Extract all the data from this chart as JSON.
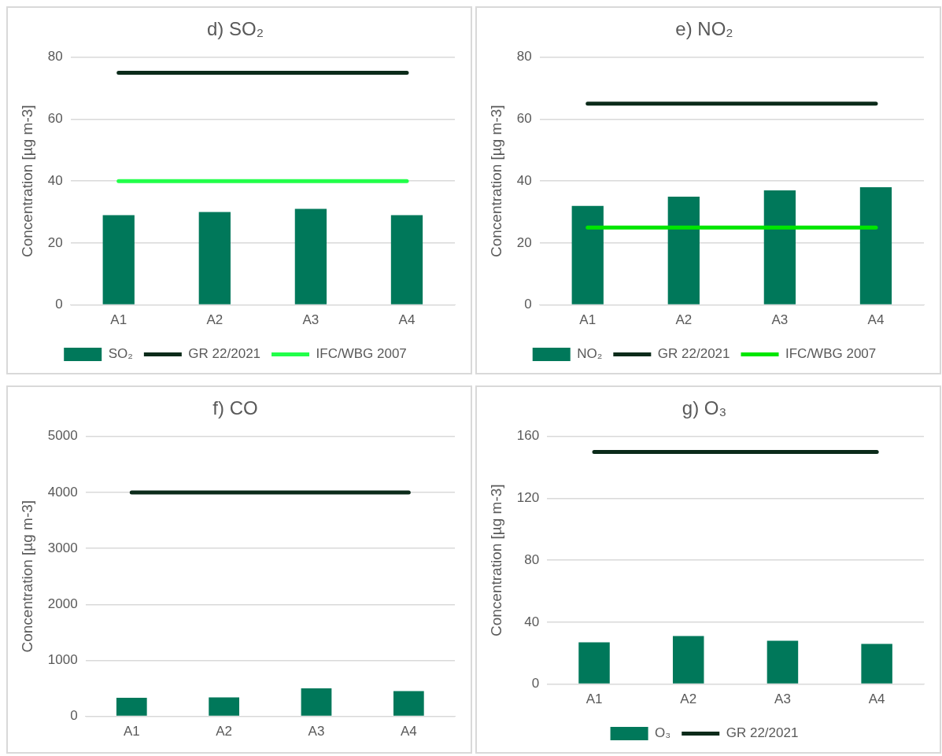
{
  "chart_data": [
    {
      "type": "bar",
      "title": "d) SO₂",
      "ylabel": "Concentration [µg m-3]",
      "categories": [
        "A1",
        "A2",
        "A3",
        "A4"
      ],
      "ylim": [
        0,
        80
      ],
      "yticks": [
        0,
        20,
        40,
        60,
        80
      ],
      "grid": "y",
      "legend": "bottom",
      "series": [
        {
          "name": "SO₂",
          "color": "#00785a",
          "values": [
            29,
            30,
            31,
            29
          ]
        },
        {
          "name": "GR 22/2021",
          "type": "line",
          "color": "#0b2b1a",
          "values": [
            75,
            75,
            75,
            75
          ]
        },
        {
          "name": "IFC/WBG 2007",
          "type": "line",
          "color": "#22ff4a",
          "values": [
            40,
            40,
            40,
            40
          ]
        }
      ]
    },
    {
      "type": "bar",
      "title": "e) NO₂",
      "ylabel": "Concentration [µg m-3]",
      "categories": [
        "A1",
        "A2",
        "A3",
        "A4"
      ],
      "ylim": [
        0,
        80
      ],
      "yticks": [
        0,
        20,
        40,
        60,
        80
      ],
      "grid": "y",
      "legend": "bottom",
      "series": [
        {
          "name": "NO₂",
          "color": "#00785a",
          "values": [
            32,
            35,
            37,
            38
          ]
        },
        {
          "name": "GR 22/2021",
          "type": "line",
          "color": "#0b2b1a",
          "values": [
            65,
            65,
            65,
            65
          ]
        },
        {
          "name": "IFC/WBG 2007",
          "type": "line",
          "color": "#00e600",
          "values": [
            25,
            25,
            25,
            25
          ]
        }
      ]
    },
    {
      "type": "bar",
      "title": "f) CO",
      "ylabel": "Concentration [µg m-3]",
      "categories": [
        "A1",
        "A2",
        "A3",
        "A4"
      ],
      "ylim": [
        0,
        5000
      ],
      "yticks": [
        0,
        1000,
        2000,
        3000,
        4000,
        5000
      ],
      "grid": "y",
      "legend": false,
      "series": [
        {
          "color": "#00785a",
          "values": [
            330,
            340,
            500,
            450
          ]
        },
        {
          "type": "line",
          "color": "#0b2b1a",
          "values": [
            4000,
            4000,
            4000,
            4000
          ]
        }
      ]
    },
    {
      "type": "bar",
      "title": "g) O₃",
      "ylabel": "Concentration [µg m-3]",
      "categories": [
        "A1",
        "A2",
        "A3",
        "A4"
      ],
      "ylim": [
        0,
        160
      ],
      "yticks": [
        0,
        40,
        80,
        120,
        160
      ],
      "grid": "y",
      "legend": "bottom",
      "series": [
        {
          "name": "O₃",
          "color": "#00785a",
          "values": [
            27,
            31,
            28,
            26
          ]
        },
        {
          "name": "GR 22/2021",
          "type": "line",
          "color": "#0b2b1a",
          "values": [
            150,
            150,
            150,
            150
          ]
        }
      ]
    }
  ]
}
